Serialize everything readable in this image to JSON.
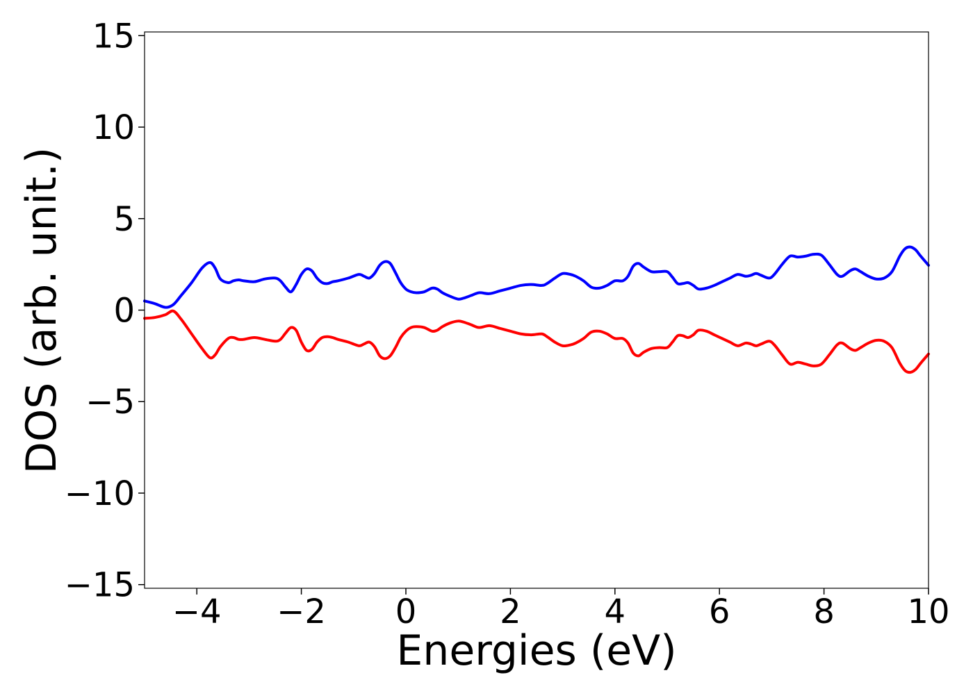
{
  "chart_data": {
    "type": "line",
    "xlabel": "Energies (eV)",
    "ylabel": "DOS (arb. unit.)",
    "xlim": [
      -5,
      10
    ],
    "ylim": [
      -15.2,
      15.2
    ],
    "xticks": [
      -4,
      -2,
      0,
      2,
      4,
      6,
      8,
      10
    ],
    "xtick_labels": [
      "−4",
      "−2",
      "0",
      "2",
      "4",
      "6",
      "8",
      "10"
    ],
    "yticks": [
      15,
      10,
      5,
      0,
      -5,
      -10,
      -15
    ],
    "ytick_labels": [
      "15",
      "10",
      "5",
      "0",
      "−5",
      "−10",
      "−15"
    ],
    "grid": false,
    "series": [
      {
        "color": "#0000ff",
        "x": [
          -5.0,
          -4.8,
          -4.6,
          -4.45,
          -4.3,
          -4.1,
          -3.9,
          -3.75,
          -3.65,
          -3.55,
          -3.4,
          -3.3,
          -3.2,
          -3.1,
          -2.9,
          -2.7,
          -2.5,
          -2.4,
          -2.3,
          -2.2,
          -2.1,
          -2.0,
          -1.9,
          -1.8,
          -1.7,
          -1.6,
          -1.5,
          -1.4,
          -1.3,
          -1.1,
          -0.9,
          -0.8,
          -0.7,
          -0.6,
          -0.5,
          -0.4,
          -0.3,
          -0.2,
          -0.1,
          0.0,
          0.1,
          0.2,
          0.35,
          0.5,
          0.6,
          0.7,
          0.85,
          1.0,
          1.1,
          1.25,
          1.4,
          1.6,
          1.8,
          2.0,
          2.2,
          2.4,
          2.6,
          2.7,
          2.85,
          3.0,
          3.15,
          3.25,
          3.4,
          3.55,
          3.7,
          3.85,
          4.0,
          4.15,
          4.25,
          4.35,
          4.45,
          4.55,
          4.7,
          4.85,
          5.0,
          5.1,
          5.2,
          5.3,
          5.4,
          5.5,
          5.6,
          5.75,
          5.9,
          6.05,
          6.2,
          6.35,
          6.5,
          6.6,
          6.7,
          6.8,
          6.95,
          7.05,
          7.2,
          7.35,
          7.5,
          7.65,
          7.8,
          7.95,
          8.1,
          8.25,
          8.35,
          8.5,
          8.6,
          8.7,
          8.85,
          9.0,
          9.15,
          9.3,
          9.45,
          9.55,
          9.65,
          9.75,
          9.85,
          10.0
        ],
        "values": [
          0.5,
          0.35,
          0.15,
          0.3,
          0.8,
          1.5,
          2.3,
          2.6,
          2.3,
          1.7,
          1.5,
          1.6,
          1.65,
          1.6,
          1.55,
          1.7,
          1.75,
          1.6,
          1.25,
          1.0,
          1.4,
          1.95,
          2.25,
          2.15,
          1.75,
          1.5,
          1.45,
          1.55,
          1.6,
          1.75,
          1.95,
          1.85,
          1.75,
          2.0,
          2.45,
          2.65,
          2.55,
          2.05,
          1.5,
          1.15,
          1.0,
          0.95,
          1.0,
          1.2,
          1.15,
          0.95,
          0.75,
          0.6,
          0.65,
          0.8,
          0.95,
          0.9,
          1.05,
          1.2,
          1.35,
          1.4,
          1.35,
          1.45,
          1.75,
          2.0,
          1.95,
          1.85,
          1.6,
          1.25,
          1.2,
          1.35,
          1.6,
          1.6,
          1.85,
          2.4,
          2.55,
          2.35,
          2.1,
          2.1,
          2.1,
          1.8,
          1.45,
          1.45,
          1.5,
          1.35,
          1.15,
          1.2,
          1.35,
          1.55,
          1.75,
          1.95,
          1.85,
          1.9,
          2.0,
          1.9,
          1.75,
          1.95,
          2.5,
          2.95,
          2.9,
          2.95,
          3.05,
          3.0,
          2.5,
          1.95,
          1.85,
          2.15,
          2.25,
          2.1,
          1.85,
          1.7,
          1.75,
          2.1,
          2.95,
          3.35,
          3.45,
          3.3,
          2.95,
          2.45
        ]
      },
      {
        "color": "#ff0000",
        "x": [
          -5.0,
          -4.8,
          -4.6,
          -4.45,
          -4.3,
          -4.1,
          -3.9,
          -3.75,
          -3.65,
          -3.55,
          -3.4,
          -3.3,
          -3.2,
          -3.1,
          -2.9,
          -2.7,
          -2.5,
          -2.4,
          -2.3,
          -2.2,
          -2.1,
          -2.0,
          -1.9,
          -1.8,
          -1.7,
          -1.6,
          -1.5,
          -1.4,
          -1.3,
          -1.1,
          -0.9,
          -0.8,
          -0.7,
          -0.6,
          -0.5,
          -0.4,
          -0.3,
          -0.2,
          -0.1,
          0.0,
          0.1,
          0.2,
          0.35,
          0.5,
          0.6,
          0.7,
          0.85,
          1.0,
          1.1,
          1.25,
          1.4,
          1.6,
          1.8,
          2.0,
          2.2,
          2.4,
          2.6,
          2.7,
          2.85,
          3.0,
          3.15,
          3.25,
          3.4,
          3.55,
          3.7,
          3.85,
          4.0,
          4.15,
          4.25,
          4.35,
          4.45,
          4.55,
          4.7,
          4.85,
          5.0,
          5.1,
          5.2,
          5.3,
          5.4,
          5.5,
          5.6,
          5.75,
          5.9,
          6.05,
          6.2,
          6.35,
          6.5,
          6.6,
          6.7,
          6.8,
          6.95,
          7.05,
          7.2,
          7.35,
          7.5,
          7.65,
          7.8,
          7.95,
          8.1,
          8.25,
          8.35,
          8.5,
          8.6,
          8.7,
          8.85,
          9.0,
          9.15,
          9.3,
          9.45,
          9.55,
          9.65,
          9.75,
          9.85,
          10.0
        ],
        "values": [
          -0.45,
          -0.4,
          -0.25,
          -0.05,
          -0.5,
          -1.3,
          -2.1,
          -2.6,
          -2.45,
          -2.0,
          -1.55,
          -1.5,
          -1.6,
          -1.6,
          -1.5,
          -1.6,
          -1.7,
          -1.6,
          -1.25,
          -0.95,
          -1.1,
          -1.75,
          -2.2,
          -2.15,
          -1.75,
          -1.5,
          -1.45,
          -1.5,
          -1.6,
          -1.75,
          -1.95,
          -1.85,
          -1.75,
          -2.0,
          -2.5,
          -2.65,
          -2.5,
          -2.05,
          -1.5,
          -1.15,
          -0.95,
          -0.9,
          -0.95,
          -1.15,
          -1.1,
          -0.9,
          -0.7,
          -0.6,
          -0.65,
          -0.8,
          -0.95,
          -0.85,
          -1.0,
          -1.15,
          -1.3,
          -1.35,
          -1.3,
          -1.45,
          -1.75,
          -1.95,
          -1.9,
          -1.8,
          -1.55,
          -1.2,
          -1.15,
          -1.3,
          -1.55,
          -1.55,
          -1.8,
          -2.35,
          -2.5,
          -2.3,
          -2.1,
          -2.05,
          -2.05,
          -1.75,
          -1.4,
          -1.4,
          -1.5,
          -1.35,
          -1.1,
          -1.15,
          -1.35,
          -1.55,
          -1.75,
          -1.95,
          -1.8,
          -1.85,
          -1.95,
          -1.85,
          -1.7,
          -1.9,
          -2.45,
          -2.95,
          -2.85,
          -2.95,
          -3.05,
          -2.95,
          -2.45,
          -1.9,
          -1.8,
          -2.1,
          -2.2,
          -2.05,
          -1.8,
          -1.65,
          -1.7,
          -2.05,
          -2.9,
          -3.3,
          -3.4,
          -3.25,
          -2.9,
          -2.4
        ]
      }
    ]
  }
}
